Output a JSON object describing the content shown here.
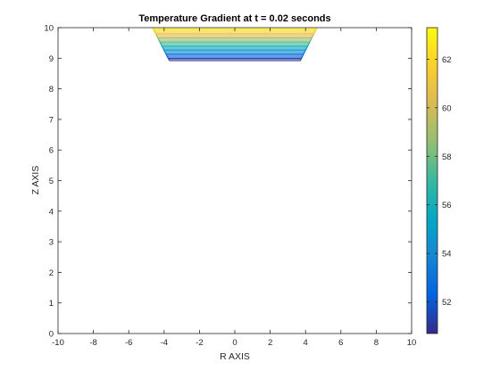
{
  "chart_data": {
    "type": "contour",
    "title": "Temperature Gradient at t = 0.02 seconds",
    "xlabel": "R AXIS",
    "ylabel": "Z AXIS",
    "xlim": [
      -10,
      10
    ],
    "ylim": [
      0,
      10
    ],
    "xticks": [
      -10,
      -8,
      -6,
      -4,
      -2,
      0,
      2,
      4,
      6,
      8,
      10
    ],
    "yticks": [
      0,
      1,
      2,
      3,
      4,
      5,
      6,
      7,
      8,
      9,
      10
    ],
    "grid": false,
    "colormap": "parula",
    "colorbar": {
      "range": [
        50.7,
        63.3
      ],
      "ticks": [
        52,
        54,
        56,
        58,
        60,
        62
      ]
    },
    "contours": {
      "top_z": 10,
      "bottom_z": 8.92,
      "top_half_width": 4.65,
      "bottom_half_width": 3.7,
      "level_min": 50.7,
      "level_max": 63.3,
      "count": 30
    }
  }
}
